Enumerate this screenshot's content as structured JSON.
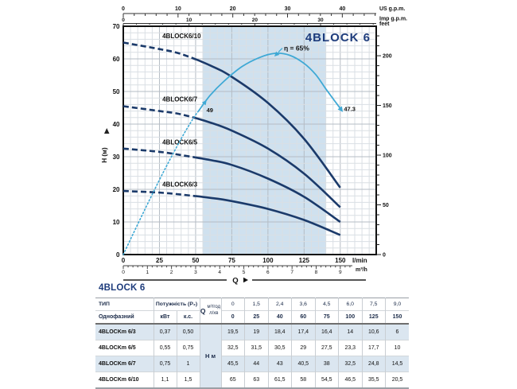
{
  "colors": {
    "curve": "#1b3a6a",
    "efficiency": "#3fa9d5",
    "band": "#cfe1ef",
    "grid_minor": "#dadfe4",
    "grid_major": "#b5bcc4",
    "frame": "#111111",
    "title": "#1e3c7c",
    "shaded_row": "#dbe6f0"
  },
  "chart_data": {
    "type": "line",
    "title": "4BLOCK 6",
    "x_unit": "l/min",
    "y_unit": "m",
    "xlim_lmin": [
      0,
      175
    ],
    "ylim_m": [
      0,
      70
    ],
    "grid": "on",
    "recommended_range_lmin": [
      55,
      140
    ],
    "x_axes": {
      "us_gpm": {
        "ticks": [
          0,
          10,
          20,
          30,
          40
        ],
        "unit": "US g.p.m."
      },
      "imp_gpm": {
        "ticks": [
          0,
          10,
          20,
          30
        ],
        "unit": "Imp g.p.m."
      },
      "lmin": {
        "ticks": [
          0,
          25,
          50,
          75,
          100,
          125,
          150
        ],
        "unit": "l/min"
      },
      "m3h": {
        "ticks": [
          0,
          1,
          2,
          3,
          4,
          5,
          6,
          7,
          8,
          9
        ],
        "unit": "m³/h"
      },
      "flow_arrow_label": "Q"
    },
    "y_axes": {
      "meters": {
        "ticks": [
          0,
          10,
          20,
          30,
          40,
          50,
          60,
          70
        ],
        "unit": "H (м)"
      },
      "feet": {
        "ticks": [
          0,
          50,
          100,
          150,
          200
        ],
        "unit": "feet"
      }
    },
    "series": [
      {
        "name": "4BLOCK6/10",
        "x": [
          0,
          25,
          40,
          60,
          75,
          100,
          125,
          150
        ],
        "y": [
          65,
          63,
          61.5,
          58,
          54.5,
          46.5,
          35.5,
          20.5
        ],
        "label_pos": [
          27,
          66.4
        ]
      },
      {
        "name": "4BLOCK6/7",
        "x": [
          0,
          25,
          40,
          60,
          75,
          100,
          125,
          150
        ],
        "y": [
          45.5,
          44,
          43,
          40.5,
          38,
          32.5,
          24.8,
          14.5
        ],
        "label_pos": [
          27,
          46.9
        ]
      },
      {
        "name": "4BLOCK6/5",
        "x": [
          0,
          25,
          40,
          60,
          75,
          100,
          125,
          150
        ],
        "y": [
          32.5,
          31.5,
          30.5,
          29,
          27.5,
          23.3,
          17.7,
          10
        ],
        "label_pos": [
          27,
          33.8
        ]
      },
      {
        "name": "4BLOCK6/3",
        "x": [
          0,
          25,
          40,
          60,
          75,
          100,
          125,
          150
        ],
        "y": [
          19.5,
          19,
          18.4,
          17.4,
          16.4,
          14,
          10.6,
          6
        ],
        "label_pos": [
          27,
          20.9
        ]
      }
    ],
    "efficiency": {
      "label": "η = 65%",
      "max_value_pct": 65,
      "dotted": [
        [
          0,
          0
        ],
        [
          14,
          13
        ],
        [
          28,
          25.5
        ],
        [
          40,
          35.5
        ],
        [
          48,
          41.5
        ],
        [
          52,
          44
        ]
      ],
      "solid": [
        [
          52,
          44
        ],
        [
          60,
          48.8
        ],
        [
          70,
          53.3
        ],
        [
          82,
          57.6
        ],
        [
          94,
          60.4
        ],
        [
          105,
          61.7
        ],
        [
          115,
          61.1
        ],
        [
          125,
          58.6
        ],
        [
          133,
          55.2
        ],
        [
          140,
          50.8
        ],
        [
          146,
          47.2
        ],
        [
          150,
          44.8
        ]
      ],
      "annotations": [
        {
          "text": "49",
          "q": 57.5,
          "h": 43.6
        },
        {
          "text": "47.3",
          "q": 152.5,
          "h": 44.0
        }
      ]
    }
  },
  "table": {
    "title": "4BLOCK 6",
    "header": {
      "type_label": "ТИП",
      "phase_label": "Однофазний",
      "power_label": "Потужність (P₂)",
      "kw": "кВт",
      "hp": "к.с.",
      "q": "Q",
      "m3h": "м³/год",
      "lmin": "л/хв",
      "h_unit": "Н м",
      "m3h_values": [
        "0",
        "1,5",
        "2,4",
        "3,6",
        "4,5",
        "6,0",
        "7,5",
        "9,0"
      ],
      "lmin_values": [
        "0",
        "25",
        "40",
        "60",
        "75",
        "100",
        "125",
        "150"
      ]
    },
    "rows": [
      {
        "name": "4BLOCKm 6/3",
        "kw": "0,37",
        "hp": "0,50",
        "h": [
          "19,5",
          "19",
          "18,4",
          "17,4",
          "16,4",
          "14",
          "10,6",
          "6"
        ]
      },
      {
        "name": "4BLOCKm 6/5",
        "kw": "0,55",
        "hp": "0,75",
        "h": [
          "32,5",
          "31,5",
          "30,5",
          "29",
          "27,5",
          "23,3",
          "17,7",
          "10"
        ]
      },
      {
        "name": "4BLOCKm 6/7",
        "kw": "0,75",
        "hp": "1",
        "h": [
          "45,5",
          "44",
          "43",
          "40,5",
          "38",
          "32,5",
          "24,8",
          "14,5"
        ]
      },
      {
        "name": "4BLOCKm 6/10",
        "kw": "1,1",
        "hp": "1,5",
        "h": [
          "65",
          "63",
          "61,5",
          "58",
          "54,5",
          "46,5",
          "35,5",
          "20,5"
        ]
      }
    ]
  }
}
